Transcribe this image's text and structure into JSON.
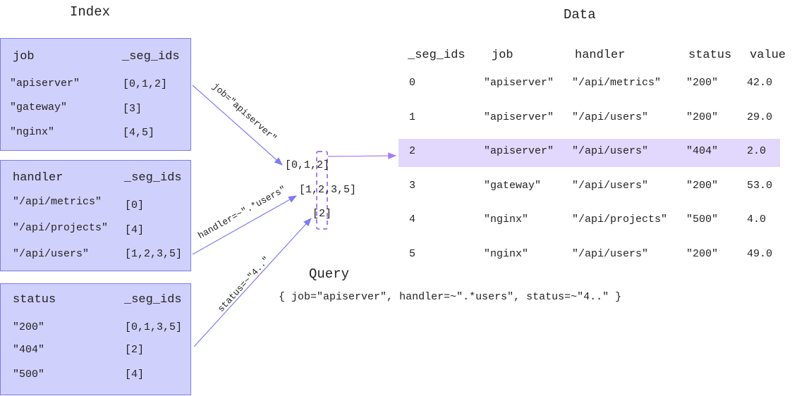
{
  "index": {
    "title": "Index",
    "tables": [
      {
        "key": "job",
        "col": "_seg_ids",
        "rows": [
          [
            "\"apiserver\"",
            "[0,1,2]"
          ],
          [
            "\"gateway\"",
            "[3]"
          ],
          [
            "\"nginx\"",
            "[4,5]"
          ]
        ]
      },
      {
        "key": "handler",
        "col": "_seg_ids",
        "rows": [
          [
            "\"/api/metrics\"",
            "[0]"
          ],
          [
            "\"/api/projects\"",
            "[4]"
          ],
          [
            "\"/api/users\"",
            "[1,2,3,5]"
          ]
        ]
      },
      {
        "key": "status",
        "col": "_seg_ids",
        "rows": [
          [
            "\"200\"",
            "[0,1,3,5]"
          ],
          [
            "\"404\"",
            "[2]"
          ],
          [
            "\"500\"",
            "[4]"
          ]
        ]
      }
    ]
  },
  "edges": {
    "job": "job=\"apiserver\"",
    "handler": "handler=~\".*users\"",
    "status": "status=~\"4..\""
  },
  "intermediate": [
    "[0,1,2]",
    "[1,2,3,5]",
    "[2]"
  ],
  "query": {
    "title": "Query",
    "lines": [
      "{",
      "  job=\"apiserver\",",
      "  handler=~\".*users\",",
      "  status=~\"4..\"",
      "}"
    ]
  },
  "data": {
    "title": "Data",
    "headers": [
      "_seg_ids",
      "job",
      "handler",
      "status",
      "value"
    ],
    "rows": [
      [
        "0",
        "\"apiserver\"",
        "\"/api/metrics\"",
        "\"200\"",
        "42.0"
      ],
      [
        "1",
        "\"apiserver\"",
        "\"/api/users\"",
        "\"200\"",
        "29.0"
      ],
      [
        "2",
        "\"apiserver\"",
        "\"/api/users\"",
        "\"404\"",
        "2.0"
      ],
      [
        "3",
        "\"gateway\"",
        "\"/api/users\"",
        "\"200\"",
        "53.0"
      ],
      [
        "4",
        "\"nginx\"",
        "\"/api/projects\"",
        "\"500\"",
        "4.0"
      ],
      [
        "5",
        "\"nginx\"",
        "\"/api/users\"",
        "\"200\"",
        "49.0"
      ]
    ],
    "highlighted_row": 2
  },
  "colors": {
    "box_fill": "#d0d0fc",
    "box_border": "#7b7bf5",
    "highlight": "#e2d7fc",
    "dashed": "#a57cf5",
    "arrow": "#7b7bf5"
  }
}
